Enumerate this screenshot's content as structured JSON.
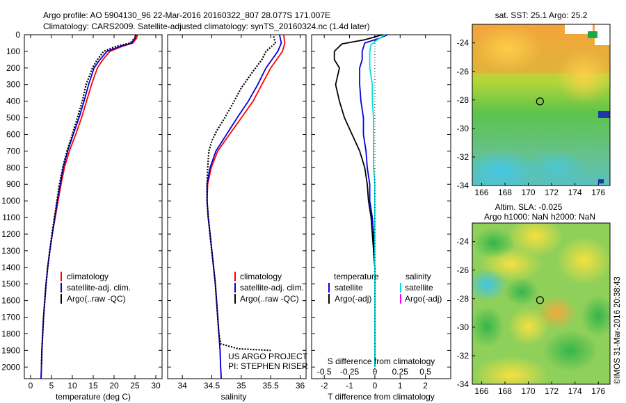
{
  "header": {
    "line1": "Argo profile: AO 5904130_96 22-Mar-2016 20160322_807 28.077S 171.007E",
    "line2": "Climatology: CARS2009. Satellite-adjusted climatology: synTS_20160324.nc (1.4d later)"
  },
  "credits": {
    "project": "US ARGO PROJECT",
    "pi": "PI: STEPHEN RISER",
    "stamp": "©IMOS 31-Mar-2016 20:38:43"
  },
  "chart_data": [
    {
      "id": "temperature",
      "type": "line",
      "xlabel": "temperature (deg C)",
      "ylabel": "",
      "xlim": [
        -1.5,
        31.5
      ],
      "ylim": [
        2070,
        0
      ],
      "xticks": [
        0,
        5,
        10,
        15,
        20,
        25,
        30
      ],
      "yticks": [
        0,
        100,
        200,
        300,
        400,
        500,
        600,
        700,
        800,
        900,
        1000,
        1100,
        1200,
        1300,
        1400,
        1500,
        1600,
        1700,
        1800,
        1900,
        2000
      ],
      "legend": [
        "climatology",
        "satellite-adj. clim.",
        "Argo(..raw -QC)"
      ],
      "legend_placement": "lower-right",
      "series": [
        {
          "name": "climatology",
          "color": "#ff0000",
          "style": "solid",
          "points": [
            [
              25.6,
              0
            ],
            [
              25.4,
              20
            ],
            [
              24.5,
              50
            ],
            [
              22,
              70
            ],
            [
              19,
              100
            ],
            [
              17.3,
              150
            ],
            [
              16,
              200
            ],
            [
              14.6,
              300
            ],
            [
              13.4,
              400
            ],
            [
              12.2,
              500
            ],
            [
              10.8,
              600
            ],
            [
              9.3,
              700
            ],
            [
              8.1,
              800
            ],
            [
              7.3,
              900
            ],
            [
              6.6,
              1000
            ],
            [
              5.9,
              1100
            ],
            [
              5.2,
              1200
            ],
            [
              4.6,
              1300
            ],
            [
              4.1,
              1400
            ],
            [
              3.7,
              1500
            ],
            [
              3.4,
              1600
            ],
            [
              3.1,
              1700
            ],
            [
              2.9,
              1800
            ],
            [
              2.7,
              1900
            ],
            [
              2.6,
              2000
            ],
            [
              2.5,
              2070
            ]
          ]
        },
        {
          "name": "satellite-adj. clim.",
          "color": "#0000dd",
          "style": "solid",
          "points": [
            [
              25.2,
              0
            ],
            [
              25.0,
              20
            ],
            [
              24.2,
              50
            ],
            [
              21.5,
              70
            ],
            [
              18.3,
              100
            ],
            [
              16.6,
              150
            ],
            [
              15.2,
              200
            ],
            [
              13.9,
              300
            ],
            [
              12.8,
              400
            ],
            [
              11.6,
              500
            ],
            [
              10.2,
              600
            ],
            [
              8.9,
              700
            ],
            [
              7.8,
              800
            ],
            [
              7.1,
              900
            ],
            [
              6.4,
              1000
            ],
            [
              5.8,
              1100
            ],
            [
              5.2,
              1200
            ],
            [
              4.6,
              1300
            ],
            [
              4.1,
              1400
            ],
            [
              3.7,
              1500
            ],
            [
              3.4,
              1600
            ],
            [
              3.1,
              1700
            ],
            [
              2.9,
              1800
            ],
            [
              2.7,
              1900
            ],
            [
              2.6,
              2000
            ],
            [
              2.5,
              2070
            ]
          ]
        },
        {
          "name": "Argo(..raw -QC)",
          "color": "#000000",
          "style": "dotted",
          "points": [
            [
              25.3,
              0
            ],
            [
              25.0,
              20
            ],
            [
              23.8,
              50
            ],
            [
              20.5,
              70
            ],
            [
              17.5,
              100
            ],
            [
              16.0,
              150
            ],
            [
              14.8,
              200
            ],
            [
              13.3,
              300
            ],
            [
              12.4,
              400
            ],
            [
              11.2,
              500
            ],
            [
              10.0,
              600
            ],
            [
              8.7,
              700
            ],
            [
              7.7,
              800
            ],
            [
              6.9,
              900
            ],
            [
              6.3,
              1000
            ],
            [
              5.7,
              1100
            ],
            [
              5.1,
              1200
            ],
            [
              4.6,
              1300
            ],
            [
              4.1,
              1400
            ],
            [
              3.7,
              1500
            ],
            [
              3.4,
              1600
            ],
            [
              3.1,
              1700
            ],
            [
              2.9,
              1800
            ],
            [
              2.7,
              1900
            ],
            [
              2.6,
              1990
            ]
          ]
        }
      ]
    },
    {
      "id": "salinity",
      "type": "line",
      "xlabel": "salinity",
      "xlim": [
        33.75,
        36.1
      ],
      "ylim": [
        2070,
        0
      ],
      "xticks": [
        34,
        34.5,
        35,
        35.5,
        36
      ],
      "xticklabels": [
        "34",
        "34.5",
        "35",
        "35.5",
        "36"
      ],
      "legend": [
        "climatology",
        "satellite-adj. clim.",
        "Argo(..raw -QC)"
      ],
      "legend_placement": "lower-right",
      "series": [
        {
          "name": "climatology",
          "color": "#ff0000",
          "style": "solid",
          "points": [
            [
              35.72,
              0
            ],
            [
              35.74,
              50
            ],
            [
              35.7,
              100
            ],
            [
              35.6,
              150
            ],
            [
              35.5,
              200
            ],
            [
              35.35,
              300
            ],
            [
              35.2,
              400
            ],
            [
              35.0,
              500
            ],
            [
              34.8,
              600
            ],
            [
              34.6,
              700
            ],
            [
              34.49,
              800
            ],
            [
              34.43,
              900
            ],
            [
              34.42,
              1000
            ],
            [
              34.44,
              1100
            ],
            [
              34.47,
              1200
            ],
            [
              34.5,
              1300
            ],
            [
              34.53,
              1400
            ],
            [
              34.56,
              1500
            ],
            [
              34.58,
              1600
            ],
            [
              34.6,
              1700
            ],
            [
              34.62,
              1800
            ],
            [
              34.64,
              1900
            ],
            [
              34.65,
              2000
            ],
            [
              34.66,
              2070
            ]
          ]
        },
        {
          "name": "satellite-adj. clim.",
          "color": "#0000dd",
          "style": "solid",
          "points": [
            [
              35.65,
              0
            ],
            [
              35.68,
              50
            ],
            [
              35.62,
              100
            ],
            [
              35.52,
              150
            ],
            [
              35.42,
              200
            ],
            [
              35.28,
              300
            ],
            [
              35.12,
              400
            ],
            [
              34.93,
              500
            ],
            [
              34.75,
              600
            ],
            [
              34.57,
              700
            ],
            [
              34.47,
              800
            ],
            [
              34.42,
              900
            ],
            [
              34.42,
              1000
            ],
            [
              34.44,
              1100
            ],
            [
              34.47,
              1200
            ],
            [
              34.5,
              1300
            ],
            [
              34.53,
              1400
            ],
            [
              34.56,
              1500
            ],
            [
              34.58,
              1600
            ],
            [
              34.6,
              1700
            ],
            [
              34.62,
              1800
            ],
            [
              34.64,
              1900
            ],
            [
              34.65,
              2000
            ],
            [
              34.66,
              2070
            ]
          ]
        },
        {
          "name": "Argo(..raw -QC)",
          "color": "#000000",
          "style": "dotted",
          "points": [
            [
              35.55,
              10
            ],
            [
              35.58,
              50
            ],
            [
              35.42,
              100
            ],
            [
              35.35,
              150
            ],
            [
              35.2,
              220
            ],
            [
              35.0,
              320
            ],
            [
              34.85,
              420
            ],
            [
              34.72,
              500
            ],
            [
              34.58,
              580
            ],
            [
              34.5,
              640
            ],
            [
              34.45,
              700
            ],
            [
              34.43,
              800
            ],
            [
              34.42,
              900
            ],
            [
              34.42,
              1000
            ],
            [
              34.44,
              1100
            ],
            [
              34.47,
              1200
            ],
            [
              34.5,
              1300
            ],
            [
              34.53,
              1400
            ],
            [
              34.56,
              1500
            ],
            [
              34.58,
              1600
            ],
            [
              34.6,
              1700
            ],
            [
              34.62,
              1800
            ],
            [
              34.65,
              1860
            ],
            [
              34.95,
              1890
            ],
            [
              35.5,
              1900
            ]
          ]
        }
      ]
    },
    {
      "id": "difference",
      "type": "line",
      "xlabel": "T difference from climatology",
      "top_label": "S difference from climatology",
      "xlim": [
        -2.5,
        3.0
      ],
      "ylim": [
        2070,
        0
      ],
      "xticks": [
        -2,
        -1,
        0,
        1,
        2
      ],
      "xticklabels": [
        "-2",
        "-1",
        "0",
        "1",
        "2"
      ],
      "top_ticklabels": [
        "-0.5",
        "-0.25",
        "0",
        "0.25",
        "0.5"
      ],
      "legend_titles": [
        "temperature",
        "salinity"
      ],
      "legend": [
        "satellite",
        "Argo(-adj)",
        "satellite",
        "Argo(-adj)"
      ],
      "legend_placement": "lower-center",
      "series": [
        {
          "name": "temperature satellite",
          "color": "#0000dd",
          "style": "solid",
          "points": [
            [
              0.5,
              0
            ],
            [
              0.2,
              20
            ],
            [
              -0.4,
              50
            ],
            [
              -0.5,
              100
            ],
            [
              -0.5,
              150
            ],
            [
              -0.6,
              200
            ],
            [
              -0.6,
              300
            ],
            [
              -0.55,
              400
            ],
            [
              -0.45,
              500
            ],
            [
              -0.45,
              600
            ],
            [
              -0.35,
              700
            ],
            [
              -0.3,
              800
            ],
            [
              -0.2,
              900
            ],
            [
              -0.2,
              1000
            ],
            [
              -0.1,
              1100
            ],
            [
              -0.05,
              1200
            ],
            [
              -0.05,
              1300
            ],
            [
              0,
              1400
            ],
            [
              0,
              1500
            ],
            [
              0,
              1600
            ],
            [
              0,
              1700
            ],
            [
              0,
              1800
            ],
            [
              0,
              1900
            ],
            [
              0,
              2000
            ]
          ]
        },
        {
          "name": "temperature Argo(-adj)",
          "color": "#000000",
          "style": "solid",
          "points": [
            [
              0.3,
              0
            ],
            [
              -0.4,
              30
            ],
            [
              -1.3,
              55
            ],
            [
              -1.6,
              100
            ],
            [
              -1.6,
              150
            ],
            [
              -1.4,
              200
            ],
            [
              -1.55,
              300
            ],
            [
              -1.4,
              400
            ],
            [
              -1.2,
              500
            ],
            [
              -0.9,
              600
            ],
            [
              -0.6,
              700
            ],
            [
              -0.4,
              800
            ],
            [
              -0.3,
              900
            ],
            [
              -0.25,
              1000
            ],
            [
              -0.15,
              1100
            ],
            [
              -0.1,
              1200
            ],
            [
              -0.05,
              1300
            ],
            [
              0,
              1400
            ],
            [
              0,
              1500
            ],
            [
              0,
              1600
            ],
            [
              0,
              1700
            ],
            [
              0,
              1800
            ],
            [
              0,
              1900
            ],
            [
              0,
              1990
            ]
          ]
        },
        {
          "name": "salinity satellite",
          "color": "#00e0e0",
          "style": "solid",
          "points": [
            [
              0.4,
              0
            ],
            [
              0.1,
              30
            ],
            [
              -0.15,
              60
            ],
            [
              -0.2,
              100
            ],
            [
              -0.2,
              200
            ],
            [
              -0.1,
              300
            ],
            [
              -0.1,
              400
            ],
            [
              -0.05,
              500
            ],
            [
              -0.05,
              600
            ],
            [
              -0.05,
              700
            ],
            [
              -0.05,
              800
            ],
            [
              0,
              900
            ],
            [
              0,
              1000
            ],
            [
              0,
              1100
            ],
            [
              0,
              1200
            ],
            [
              0,
              1400
            ],
            [
              0,
              1600
            ],
            [
              0,
              1800
            ],
            [
              0,
              2000
            ]
          ]
        },
        {
          "name": "zero line",
          "color": "#000000",
          "style": "dotted",
          "points": [
            [
              0,
              0
            ],
            [
              0,
              2070
            ]
          ]
        }
      ]
    }
  ],
  "maps": [
    {
      "id": "sst-map",
      "title": "sat. SST: 25.1  Argo: 25.2",
      "xticks": [
        166,
        168,
        170,
        172,
        174,
        176
      ],
      "yticks": [
        -24,
        -26,
        -28,
        -30,
        -32,
        -34
      ],
      "xlim": [
        165.2,
        177.0
      ],
      "ylim": [
        -34.0,
        -22.7
      ],
      "marker": [
        171.0,
        -28.1
      ]
    },
    {
      "id": "sla-map",
      "title": "Altim. SLA: -0.025",
      "subtitle": "Argo h1000: NaN h2000: NaN",
      "xticks": [
        166,
        168,
        170,
        172,
        174,
        176
      ],
      "yticks": [
        -24,
        -26,
        -28,
        -30,
        -32,
        -34
      ],
      "xlim": [
        165.2,
        177.0
      ],
      "ylim": [
        -34.0,
        -22.7
      ],
      "marker": [
        171.0,
        -28.1
      ]
    }
  ]
}
